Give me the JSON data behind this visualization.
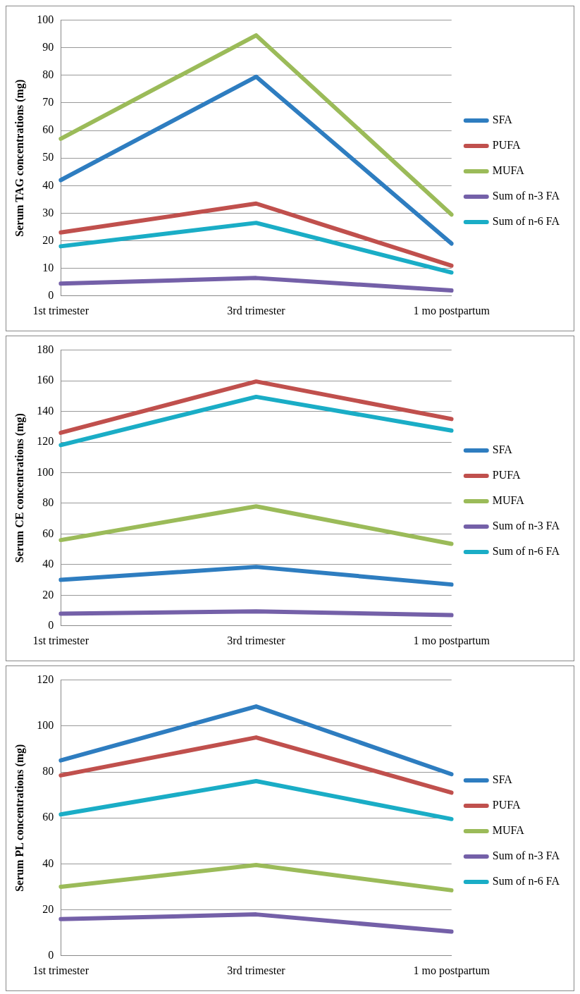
{
  "chart_data": [
    {
      "type": "line",
      "ylabel": "Serum TAG concentrations (mg)",
      "categories": [
        "1st trimester",
        "3rd trimester",
        "1 mo postpartum"
      ],
      "ylim": [
        0,
        100
      ],
      "yticks": [
        0,
        10,
        20,
        30,
        40,
        50,
        60,
        70,
        80,
        90,
        100
      ],
      "grid": "y",
      "legend": "right",
      "marker": "none",
      "line_style": "solid",
      "series": [
        {
          "name": "SFA",
          "color": "#2e7dc0",
          "values": [
            42,
            79.5,
            19
          ]
        },
        {
          "name": "PUFA",
          "color": "#c0504d",
          "values": [
            23,
            33.5,
            11
          ]
        },
        {
          "name": "MUFA",
          "color": "#9bbb59",
          "values": [
            57,
            94.5,
            29.5
          ]
        },
        {
          "name": "Sum of n-3 FA",
          "color": "#7460a8",
          "values": [
            4.5,
            6.5,
            2
          ]
        },
        {
          "name": "Sum of n-6 FA",
          "color": "#1aadc6",
          "values": [
            18,
            26.5,
            8.5
          ]
        }
      ]
    },
    {
      "type": "line",
      "ylabel": "Serum CE concentrations (mg)",
      "categories": [
        "1st trimester",
        "3rd trimester",
        "1 mo postpartum"
      ],
      "ylim": [
        0,
        180
      ],
      "yticks": [
        0,
        20,
        40,
        60,
        80,
        100,
        120,
        140,
        160,
        180
      ],
      "grid": "y",
      "legend": "right",
      "marker": "none",
      "line_style": "solid",
      "series": [
        {
          "name": "SFA",
          "color": "#2e7dc0",
          "values": [
            30,
            38.5,
            27
          ]
        },
        {
          "name": "PUFA",
          "color": "#c0504d",
          "values": [
            126,
            159.5,
            135
          ]
        },
        {
          "name": "MUFA",
          "color": "#9bbb59",
          "values": [
            56,
            78,
            53.5
          ]
        },
        {
          "name": "Sum of n-3 FA",
          "color": "#7460a8",
          "values": [
            8,
            9.5,
            7
          ]
        },
        {
          "name": "Sum of n-6 FA",
          "color": "#1aadc6",
          "values": [
            118,
            149.5,
            127.5
          ]
        }
      ]
    },
    {
      "type": "line",
      "ylabel": "Serum PL concentrations (mg)",
      "categories": [
        "1st trimester",
        "3rd trimester",
        "1 mo postpartum"
      ],
      "ylim": [
        0,
        120
      ],
      "yticks": [
        0,
        20,
        40,
        60,
        80,
        100,
        120
      ],
      "grid": "y",
      "legend": "right",
      "marker": "none",
      "line_style": "solid",
      "series": [
        {
          "name": "SFA",
          "color": "#2e7dc0",
          "values": [
            85,
            108.5,
            79
          ]
        },
        {
          "name": "PUFA",
          "color": "#c0504d",
          "values": [
            78.5,
            95,
            71
          ]
        },
        {
          "name": "MUFA",
          "color": "#9bbb59",
          "values": [
            30,
            39.5,
            28.5
          ]
        },
        {
          "name": "Sum of n-3 FA",
          "color": "#7460a8",
          "values": [
            16,
            18,
            10.5
          ]
        },
        {
          "name": "Sum of n-6 FA",
          "color": "#1aadc6",
          "values": [
            61.5,
            76,
            59.5
          ]
        }
      ]
    }
  ]
}
